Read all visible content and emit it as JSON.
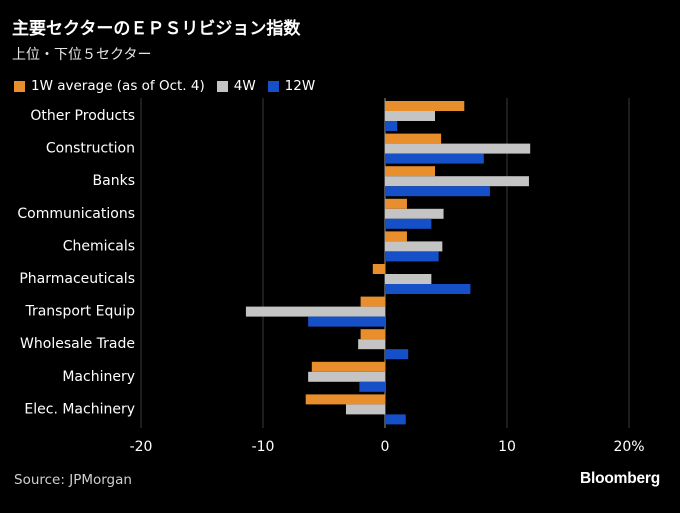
{
  "header": {
    "title": "主要セクターのＥＰＳリビジョン指数",
    "subtitle": "上位・下位５セクター"
  },
  "legend": {
    "items": [
      {
        "label": "1W average (as of Oct. 4)",
        "color": "#e88e2c"
      },
      {
        "label": "4W",
        "color": "#c4c4c4"
      },
      {
        "label": "12W",
        "color": "#1650c8"
      }
    ]
  },
  "footer": {
    "source": "Source: JPMorgan",
    "logo": "Bloomberg"
  },
  "chart_data": {
    "type": "bar",
    "orientation": "horizontal",
    "categories": [
      "Other Products",
      "Construction",
      "Banks",
      "Communications",
      "Chemicals",
      "Pharmaceuticals",
      "Transport Equip",
      "Wholesale Trade",
      "Machinery",
      "Elec. Machinery"
    ],
    "series": [
      {
        "name": "1W average (as of Oct. 4)",
        "color": "#e88e2c",
        "values": [
          6.5,
          4.6,
          4.1,
          1.8,
          1.8,
          -1.0,
          -2.0,
          -2.0,
          -6.0,
          -6.5
        ]
      },
      {
        "name": "4W",
        "color": "#c4c4c4",
        "values": [
          4.1,
          11.9,
          11.8,
          4.8,
          4.7,
          3.8,
          -11.4,
          -2.2,
          -6.3,
          -3.2
        ]
      },
      {
        "name": "12W",
        "color": "#1650c8",
        "values": [
          1.0,
          8.1,
          8.6,
          3.8,
          4.4,
          7.0,
          -6.3,
          1.9,
          -2.1,
          1.7
        ]
      }
    ],
    "xlim": [
      -20,
      20
    ],
    "xticks": [
      "-20",
      "-10",
      "0",
      "10",
      "20%"
    ],
    "xtick_values": [
      -20,
      -10,
      0,
      10,
      20
    ],
    "grid": true,
    "legend": "top-left"
  }
}
